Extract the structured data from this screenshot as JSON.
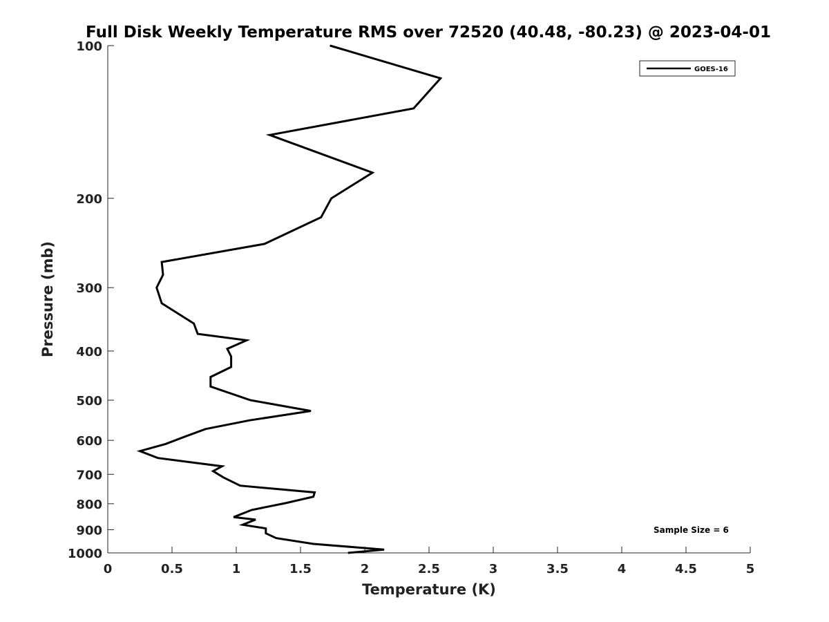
{
  "chart_data": {
    "type": "line",
    "title": "Full Disk Weekly Temperature RMS over 72520 (40.48, -80.23) @ 2023-04-01",
    "xlabel": "Temperature (K)",
    "ylabel": "Pressure (mb)",
    "xlim": [
      0,
      5
    ],
    "ylim": [
      100,
      1000
    ],
    "y_scale": "log",
    "y_reversed": true,
    "x_ticks": [
      0,
      0.5,
      1,
      1.5,
      2,
      2.5,
      3,
      3.5,
      4,
      4.5,
      5
    ],
    "x_tick_labels": [
      "0",
      "0.5",
      "1",
      "1.5",
      "2",
      "2.5",
      "3",
      "3.5",
      "4",
      "4.5",
      "5"
    ],
    "y_ticks": [
      100,
      200,
      300,
      400,
      500,
      600,
      700,
      800,
      900,
      1000
    ],
    "y_tick_labels": [
      "100",
      "200",
      "300",
      "400",
      "500",
      "600",
      "700",
      "800",
      "900",
      "1000"
    ],
    "grid": false,
    "legend_position": "top-right",
    "annotation": "Sample Size = 6",
    "series": [
      {
        "name": "GOES-16",
        "color": "#000000",
        "x": [
          1.73,
          2.59,
          2.38,
          1.26,
          2.06,
          1.74,
          1.66,
          1.22,
          0.42,
          0.43,
          0.38,
          0.42,
          0.67,
          0.7,
          1.08,
          0.93,
          0.96,
          0.96,
          0.8,
          0.8,
          1.11,
          1.58,
          1.1,
          0.76,
          0.6,
          0.45,
          0.25,
          0.39,
          0.89,
          0.82,
          0.9,
          1.03,
          1.61,
          1.6,
          1.38,
          1.12,
          0.98,
          1.15,
          1.05,
          1.23,
          1.23,
          1.31,
          1.6,
          2.15,
          1.87
        ],
        "y": [
          100,
          116,
          133,
          150,
          178,
          200,
          218,
          246,
          267,
          283,
          300,
          322,
          353,
          370,
          381,
          396,
          410,
          430,
          450,
          470,
          500,
          525,
          548,
          570,
          590,
          610,
          630,
          650,
          675,
          690,
          710,
          737,
          760,
          775,
          798,
          823,
          850,
          860,
          880,
          895,
          915,
          935,
          960,
          985,
          1000
        ]
      }
    ]
  }
}
